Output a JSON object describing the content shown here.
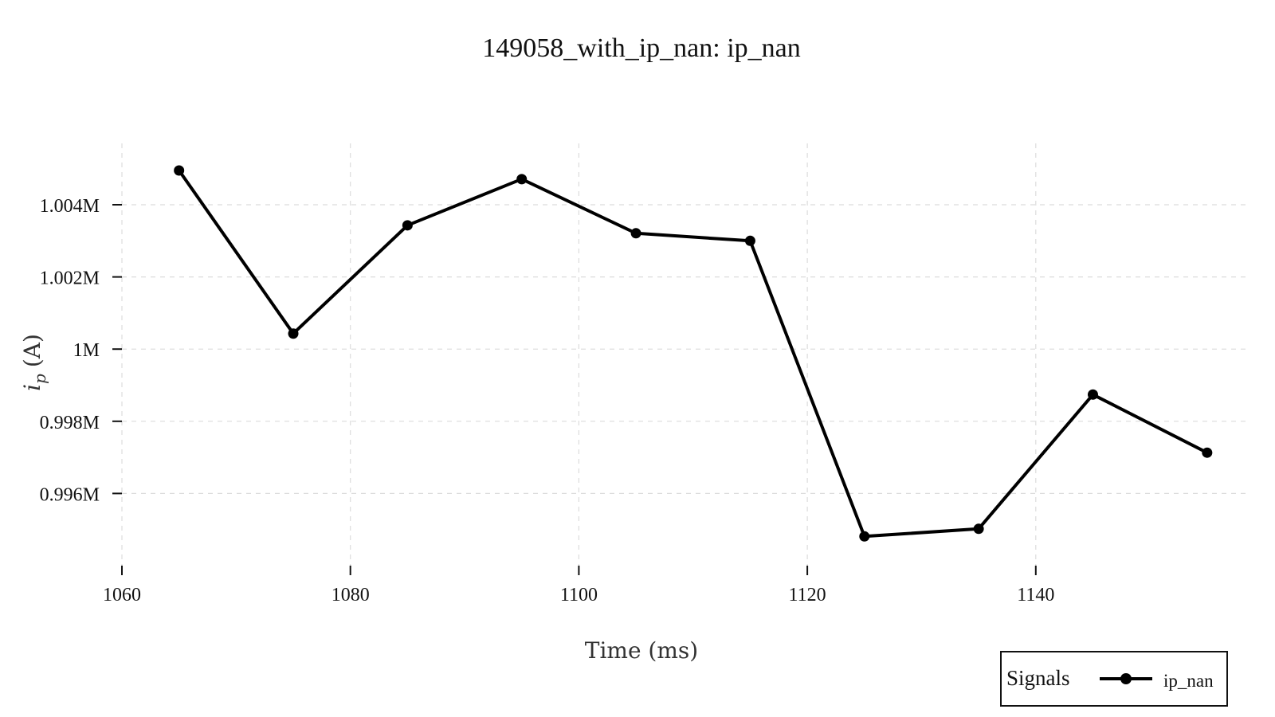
{
  "chart_data": {
    "type": "line",
    "title": "149058_with_ip_nan: ip_nan",
    "xlabel": "Time (ms)",
    "ylabel_symbol": "i",
    "ylabel_subscript": "p",
    "ylabel_unit": "(A)",
    "x_ticks": [
      1060,
      1080,
      1100,
      1120,
      1140
    ],
    "x_tick_labels": [
      "1060",
      "1080",
      "1100",
      "1120",
      "1140"
    ],
    "y_ticks": [
      0.996,
      0.998,
      1.0,
      1.002,
      1.004
    ],
    "y_tick_labels": [
      "0.996M",
      "0.998M",
      "1M",
      "1.002M",
      "1.004M"
    ],
    "xlim": [
      1060,
      1158.5
    ],
    "ylim": [
      0.994,
      1.0057
    ],
    "grid": true,
    "legend": {
      "title": "Signals",
      "placement": "bottom-right"
    },
    "series": [
      {
        "name": "ip_nan",
        "color": "#000000",
        "marker": "circle",
        "x": [
          1065,
          1075,
          1085,
          1095,
          1105,
          1115,
          1125,
          1135,
          1145,
          1155
        ],
        "y": [
          1.00495,
          1.00043,
          1.00343,
          1.00471,
          1.00321,
          1.003,
          0.99481,
          0.99502,
          0.99874,
          0.99713
        ]
      }
    ]
  }
}
